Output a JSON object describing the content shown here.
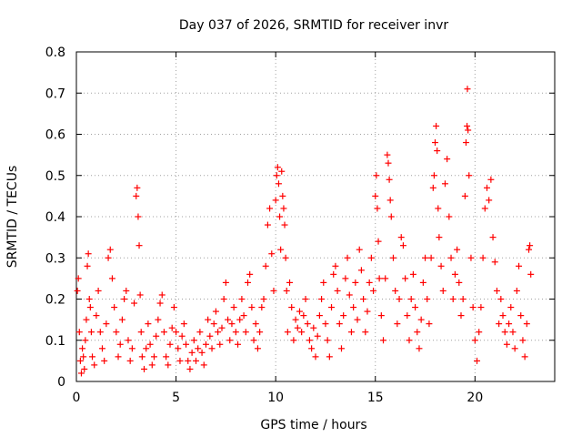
{
  "chart_data": {
    "type": "scatter",
    "title": "Day 037 of 2026, SRMTID for receiver invr",
    "xlabel": "GPS time / hours",
    "ylabel": "SRMTID / TECUs",
    "xlim": [
      0,
      24
    ],
    "ylim": [
      0,
      0.8
    ],
    "x_ticks": [
      0,
      5,
      10,
      15,
      20
    ],
    "y_ticks": [
      0,
      0.1,
      0.2,
      0.3,
      0.4,
      0.5,
      0.6,
      0.7,
      0.8
    ],
    "x_tick_labels": [
      "0",
      "5",
      "10",
      "15",
      "20"
    ],
    "y_tick_labels": [
      "0",
      "0.1",
      "0.2",
      "0.3",
      "0.4",
      "0.5",
      "0.6",
      "0.7",
      "0.8"
    ],
    "grid": true,
    "marker": "+",
    "series": [
      {
        "name": "SRMTID",
        "color": "#ff0000",
        "points": [
          [
            0.05,
            0.22
          ],
          [
            0.1,
            0.25
          ],
          [
            0.15,
            0.12
          ],
          [
            0.2,
            0.05
          ],
          [
            0.25,
            0.02
          ],
          [
            0.3,
            0.08
          ],
          [
            0.35,
            0.06
          ],
          [
            0.4,
            0.03
          ],
          [
            0.45,
            0.1
          ],
          [
            0.5,
            0.15
          ],
          [
            0.55,
            0.28
          ],
          [
            0.6,
            0.31
          ],
          [
            0.65,
            0.2
          ],
          [
            0.7,
            0.18
          ],
          [
            0.75,
            0.12
          ],
          [
            0.8,
            0.06
          ],
          [
            0.9,
            0.04
          ],
          [
            1.0,
            0.16
          ],
          [
            1.1,
            0.22
          ],
          [
            1.2,
            0.12
          ],
          [
            1.3,
            0.08
          ],
          [
            1.4,
            0.05
          ],
          [
            1.5,
            0.14
          ],
          [
            1.6,
            0.3
          ],
          [
            1.7,
            0.32
          ],
          [
            1.8,
            0.25
          ],
          [
            1.9,
            0.18
          ],
          [
            2.0,
            0.12
          ],
          [
            2.1,
            0.06
          ],
          [
            2.2,
            0.09
          ],
          [
            2.3,
            0.15
          ],
          [
            2.4,
            0.2
          ],
          [
            2.5,
            0.22
          ],
          [
            2.6,
            0.1
          ],
          [
            2.7,
            0.05
          ],
          [
            2.8,
            0.08
          ],
          [
            2.9,
            0.19
          ],
          [
            3.0,
            0.45
          ],
          [
            3.05,
            0.47
          ],
          [
            3.1,
            0.4
          ],
          [
            3.15,
            0.33
          ],
          [
            3.2,
            0.21
          ],
          [
            3.25,
            0.12
          ],
          [
            3.3,
            0.06
          ],
          [
            3.4,
            0.03
          ],
          [
            3.5,
            0.08
          ],
          [
            3.6,
            0.14
          ],
          [
            3.7,
            0.09
          ],
          [
            3.8,
            0.04
          ],
          [
            3.9,
            0.06
          ],
          [
            4.0,
            0.11
          ],
          [
            4.1,
            0.15
          ],
          [
            4.2,
            0.19
          ],
          [
            4.3,
            0.21
          ],
          [
            4.4,
            0.12
          ],
          [
            4.5,
            0.06
          ],
          [
            4.6,
            0.04
          ],
          [
            4.7,
            0.09
          ],
          [
            4.8,
            0.13
          ],
          [
            4.9,
            0.18
          ],
          [
            5.0,
            0.12
          ],
          [
            5.1,
            0.08
          ],
          [
            5.2,
            0.05
          ],
          [
            5.3,
            0.11
          ],
          [
            5.4,
            0.14
          ],
          [
            5.5,
            0.09
          ],
          [
            5.6,
            0.05
          ],
          [
            5.7,
            0.03
          ],
          [
            5.8,
            0.07
          ],
          [
            5.9,
            0.1
          ],
          [
            6.0,
            0.05
          ],
          [
            6.1,
            0.08
          ],
          [
            6.2,
            0.12
          ],
          [
            6.3,
            0.07
          ],
          [
            6.4,
            0.04
          ],
          [
            6.5,
            0.09
          ],
          [
            6.6,
            0.15
          ],
          [
            6.7,
            0.11
          ],
          [
            6.8,
            0.08
          ],
          [
            6.9,
            0.14
          ],
          [
            7.0,
            0.17
          ],
          [
            7.1,
            0.12
          ],
          [
            7.2,
            0.09
          ],
          [
            7.3,
            0.13
          ],
          [
            7.4,
            0.2
          ],
          [
            7.5,
            0.24
          ],
          [
            7.6,
            0.15
          ],
          [
            7.7,
            0.1
          ],
          [
            7.8,
            0.14
          ],
          [
            7.9,
            0.18
          ],
          [
            8.0,
            0.12
          ],
          [
            8.1,
            0.09
          ],
          [
            8.2,
            0.15
          ],
          [
            8.3,
            0.2
          ],
          [
            8.4,
            0.16
          ],
          [
            8.5,
            0.12
          ],
          [
            8.6,
            0.24
          ],
          [
            8.7,
            0.26
          ],
          [
            8.8,
            0.18
          ],
          [
            8.9,
            0.1
          ],
          [
            9.0,
            0.14
          ],
          [
            9.1,
            0.08
          ],
          [
            9.2,
            0.12
          ],
          [
            9.3,
            0.18
          ],
          [
            9.4,
            0.2
          ],
          [
            9.5,
            0.28
          ],
          [
            9.6,
            0.38
          ],
          [
            9.7,
            0.42
          ],
          [
            9.8,
            0.31
          ],
          [
            9.9,
            0.22
          ],
          [
            10.0,
            0.44
          ],
          [
            10.05,
            0.5
          ],
          [
            10.1,
            0.52
          ],
          [
            10.15,
            0.48
          ],
          [
            10.2,
            0.4
          ],
          [
            10.25,
            0.32
          ],
          [
            10.3,
            0.51
          ],
          [
            10.35,
            0.45
          ],
          [
            10.4,
            0.42
          ],
          [
            10.45,
            0.38
          ],
          [
            10.5,
            0.3
          ],
          [
            10.55,
            0.22
          ],
          [
            10.6,
            0.12
          ],
          [
            10.7,
            0.24
          ],
          [
            10.8,
            0.18
          ],
          [
            10.9,
            0.1
          ],
          [
            11.0,
            0.15
          ],
          [
            11.1,
            0.13
          ],
          [
            11.2,
            0.17
          ],
          [
            11.3,
            0.12
          ],
          [
            11.4,
            0.16
          ],
          [
            11.5,
            0.2
          ],
          [
            11.6,
            0.14
          ],
          [
            11.7,
            0.1
          ],
          [
            11.8,
            0.08
          ],
          [
            11.9,
            0.13
          ],
          [
            12.0,
            0.06
          ],
          [
            12.1,
            0.11
          ],
          [
            12.2,
            0.16
          ],
          [
            12.3,
            0.2
          ],
          [
            12.4,
            0.24
          ],
          [
            12.5,
            0.14
          ],
          [
            12.6,
            0.1
          ],
          [
            12.7,
            0.06
          ],
          [
            12.8,
            0.18
          ],
          [
            12.9,
            0.26
          ],
          [
            13.0,
            0.28
          ],
          [
            13.1,
            0.22
          ],
          [
            13.2,
            0.14
          ],
          [
            13.3,
            0.08
          ],
          [
            13.4,
            0.16
          ],
          [
            13.5,
            0.25
          ],
          [
            13.6,
            0.3
          ],
          [
            13.7,
            0.21
          ],
          [
            13.8,
            0.12
          ],
          [
            13.9,
            0.18
          ],
          [
            14.0,
            0.24
          ],
          [
            14.1,
            0.15
          ],
          [
            14.2,
            0.32
          ],
          [
            14.3,
            0.27
          ],
          [
            14.4,
            0.2
          ],
          [
            14.5,
            0.12
          ],
          [
            14.6,
            0.17
          ],
          [
            14.7,
            0.24
          ],
          [
            14.8,
            0.3
          ],
          [
            14.9,
            0.22
          ],
          [
            15.0,
            0.45
          ],
          [
            15.05,
            0.5
          ],
          [
            15.1,
            0.42
          ],
          [
            15.15,
            0.34
          ],
          [
            15.2,
            0.25
          ],
          [
            15.3,
            0.16
          ],
          [
            15.4,
            0.1
          ],
          [
            15.5,
            0.25
          ],
          [
            15.6,
            0.55
          ],
          [
            15.65,
            0.53
          ],
          [
            15.7,
            0.49
          ],
          [
            15.75,
            0.44
          ],
          [
            15.8,
            0.4
          ],
          [
            15.9,
            0.3
          ],
          [
            16.0,
            0.22
          ],
          [
            16.1,
            0.14
          ],
          [
            16.2,
            0.2
          ],
          [
            16.3,
            0.35
          ],
          [
            16.4,
            0.33
          ],
          [
            16.5,
            0.25
          ],
          [
            16.6,
            0.16
          ],
          [
            16.7,
            0.1
          ],
          [
            16.8,
            0.2
          ],
          [
            16.9,
            0.26
          ],
          [
            17.0,
            0.18
          ],
          [
            17.1,
            0.12
          ],
          [
            17.2,
            0.08
          ],
          [
            17.3,
            0.15
          ],
          [
            17.4,
            0.24
          ],
          [
            17.5,
            0.3
          ],
          [
            17.6,
            0.2
          ],
          [
            17.7,
            0.14
          ],
          [
            17.8,
            0.3
          ],
          [
            17.9,
            0.47
          ],
          [
            17.95,
            0.5
          ],
          [
            18.0,
            0.58
          ],
          [
            18.05,
            0.62
          ],
          [
            18.1,
            0.56
          ],
          [
            18.15,
            0.42
          ],
          [
            18.2,
            0.35
          ],
          [
            18.3,
            0.28
          ],
          [
            18.4,
            0.22
          ],
          [
            18.5,
            0.48
          ],
          [
            18.6,
            0.54
          ],
          [
            18.7,
            0.4
          ],
          [
            18.8,
            0.3
          ],
          [
            18.9,
            0.2
          ],
          [
            19.0,
            0.26
          ],
          [
            19.1,
            0.32
          ],
          [
            19.2,
            0.24
          ],
          [
            19.3,
            0.16
          ],
          [
            19.4,
            0.2
          ],
          [
            19.5,
            0.45
          ],
          [
            19.55,
            0.58
          ],
          [
            19.6,
            0.62
          ],
          [
            19.62,
            0.71
          ],
          [
            19.65,
            0.61
          ],
          [
            19.7,
            0.5
          ],
          [
            19.8,
            0.3
          ],
          [
            19.9,
            0.18
          ],
          [
            20.0,
            0.1
          ],
          [
            20.1,
            0.05
          ],
          [
            20.2,
            0.12
          ],
          [
            20.3,
            0.18
          ],
          [
            20.4,
            0.3
          ],
          [
            20.5,
            0.42
          ],
          [
            20.6,
            0.47
          ],
          [
            20.7,
            0.44
          ],
          [
            20.8,
            0.49
          ],
          [
            20.9,
            0.35
          ],
          [
            21.0,
            0.29
          ],
          [
            21.1,
            0.22
          ],
          [
            21.2,
            0.14
          ],
          [
            21.3,
            0.2
          ],
          [
            21.4,
            0.16
          ],
          [
            21.5,
            0.12
          ],
          [
            21.6,
            0.09
          ],
          [
            21.7,
            0.14
          ],
          [
            21.8,
            0.18
          ],
          [
            21.9,
            0.12
          ],
          [
            22.0,
            0.08
          ],
          [
            22.1,
            0.22
          ],
          [
            22.2,
            0.28
          ],
          [
            22.3,
            0.16
          ],
          [
            22.4,
            0.1
          ],
          [
            22.5,
            0.06
          ],
          [
            22.6,
            0.14
          ],
          [
            22.7,
            0.32
          ],
          [
            22.75,
            0.33
          ],
          [
            22.8,
            0.26
          ]
        ]
      }
    ]
  }
}
